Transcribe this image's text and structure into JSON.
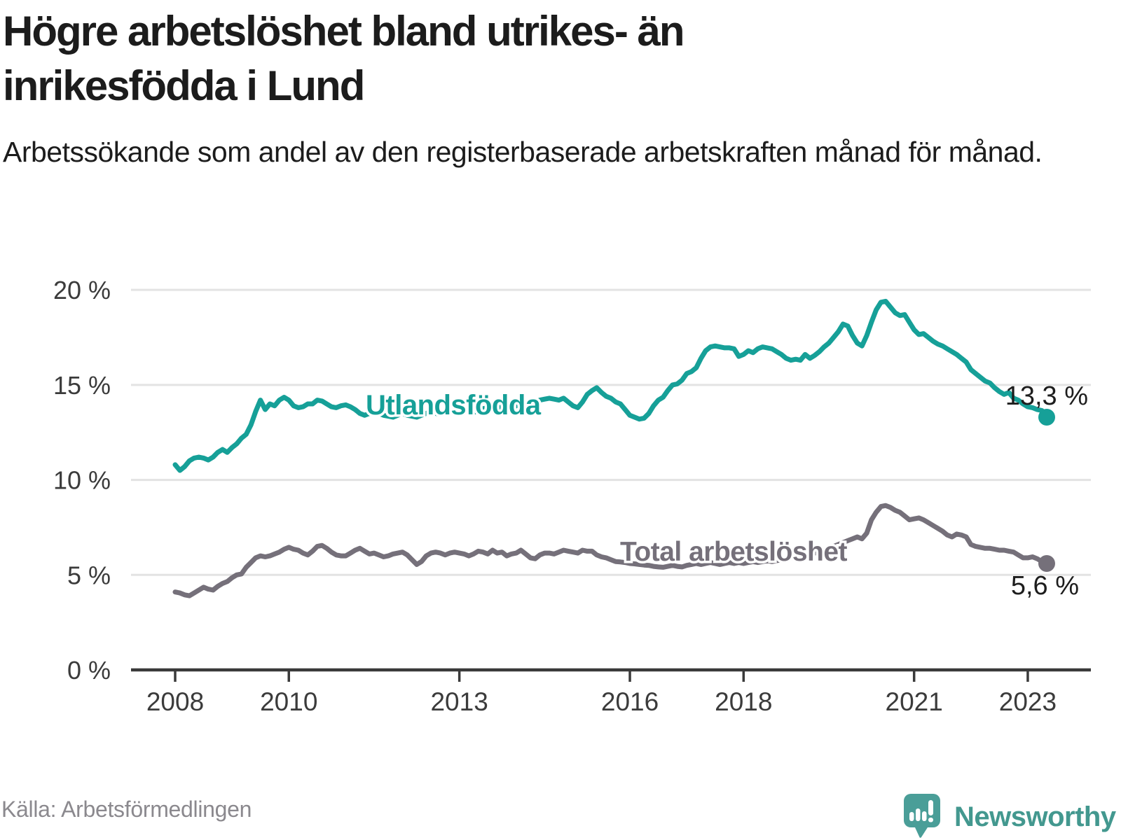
{
  "title": "Högre arbetslöshet bland utrikes- än inrikesfödda i Lund",
  "subtitle": "Arbetssökande som andel av den registerbaserade arbetskraften månad för månad.",
  "source": "Källa: Arbetsförmedlingen",
  "brand": {
    "name": "Newsworthy",
    "text_color": "#43988f",
    "icon_color": "#4a9e98"
  },
  "chart_data": {
    "type": "line",
    "title": "Högre arbetslöshet bland utrikes- än inrikesfödda i Lund",
    "xlabel": "",
    "ylabel": "Arbetssökande som andel av den registerbaserade arbetskraften",
    "x_unit": "month",
    "x_start": "2008-01",
    "x_end": "2023-05",
    "x_tick_years": [
      2008,
      2010,
      2013,
      2016,
      2018,
      2021,
      2023
    ],
    "ylim": [
      0,
      20
    ],
    "y_ticks": [
      0,
      5,
      10,
      15,
      20
    ],
    "y_tick_suffix": " %",
    "grid": true,
    "axis_color": "#3a3a3a",
    "grid_color": "#e3e3e3",
    "label_color": "#3b3b3b",
    "value_label_color": "#1d1d1d",
    "series": [
      {
        "name": "Utlandsfödda",
        "color": "#16a098",
        "end_label": "13,3 %",
        "end_value": 13.3,
        "values": [
          10.8,
          10.5,
          10.7,
          11.0,
          11.15,
          11.2,
          11.15,
          11.05,
          11.2,
          11.45,
          11.6,
          11.45,
          11.7,
          11.9,
          12.2,
          12.4,
          12.9,
          13.6,
          14.2,
          13.7,
          14.0,
          13.9,
          14.2,
          14.35,
          14.2,
          13.9,
          13.8,
          13.85,
          14.0,
          14.0,
          14.2,
          14.15,
          14.0,
          13.85,
          13.8,
          13.9,
          13.95,
          13.85,
          13.7,
          13.5,
          13.4,
          13.5,
          13.45,
          13.5,
          13.4,
          13.35,
          13.3,
          13.4,
          13.5,
          13.4,
          13.35,
          13.3,
          13.4,
          13.5,
          13.6,
          13.5,
          13.45,
          13.55,
          13.6,
          13.5,
          13.6,
          13.7,
          13.6,
          13.55,
          13.65,
          13.75,
          13.8,
          13.7,
          13.75,
          13.85,
          13.9,
          13.8,
          13.9,
          14.0,
          13.95,
          14.05,
          14.1,
          14.2,
          14.25,
          14.3,
          14.25,
          14.2,
          14.3,
          14.1,
          13.9,
          13.8,
          14.1,
          14.5,
          14.7,
          14.85,
          14.6,
          14.4,
          14.3,
          14.1,
          14.0,
          13.7,
          13.4,
          13.3,
          13.2,
          13.25,
          13.5,
          13.9,
          14.2,
          14.35,
          14.7,
          15.0,
          15.05,
          15.25,
          15.6,
          15.7,
          15.9,
          16.4,
          16.8,
          17.0,
          17.05,
          17.0,
          16.95,
          16.95,
          16.9,
          16.5,
          16.6,
          16.8,
          16.7,
          16.9,
          17.0,
          16.95,
          16.9,
          16.75,
          16.6,
          16.4,
          16.3,
          16.35,
          16.3,
          16.6,
          16.4,
          16.55,
          16.75,
          17.0,
          17.2,
          17.5,
          17.8,
          18.2,
          18.1,
          17.6,
          17.2,
          17.05,
          17.6,
          18.3,
          18.95,
          19.35,
          19.4,
          19.1,
          18.8,
          18.65,
          18.7,
          18.3,
          17.9,
          17.65,
          17.7,
          17.5,
          17.3,
          17.15,
          17.05,
          16.9,
          16.75,
          16.6,
          16.4,
          16.2,
          15.8,
          15.6,
          15.4,
          15.2,
          15.1,
          14.85,
          14.65,
          14.5,
          14.6,
          14.3,
          14.2,
          14.0,
          13.85,
          13.8,
          13.7,
          13.65,
          13.3
        ]
      },
      {
        "name": "Total arbetslöshet",
        "color": "#75707a",
        "end_label": "5,6 %",
        "end_value": 5.6,
        "values": [
          4.1,
          4.05,
          3.95,
          3.9,
          4.05,
          4.2,
          4.35,
          4.25,
          4.2,
          4.4,
          4.55,
          4.65,
          4.85,
          5.0,
          5.05,
          5.4,
          5.65,
          5.9,
          6.0,
          5.95,
          6.0,
          6.1,
          6.2,
          6.35,
          6.45,
          6.35,
          6.3,
          6.15,
          6.05,
          6.25,
          6.5,
          6.55,
          6.4,
          6.2,
          6.05,
          6.0,
          6.0,
          6.15,
          6.3,
          6.4,
          6.25,
          6.1,
          6.15,
          6.05,
          5.95,
          6.0,
          6.1,
          6.15,
          6.2,
          6.05,
          5.8,
          5.55,
          5.7,
          6.0,
          6.15,
          6.2,
          6.15,
          6.05,
          6.15,
          6.2,
          6.15,
          6.1,
          6.0,
          6.1,
          6.25,
          6.2,
          6.1,
          6.3,
          6.15,
          6.2,
          6.0,
          6.1,
          6.15,
          6.3,
          6.1,
          5.9,
          5.85,
          6.05,
          6.15,
          6.15,
          6.1,
          6.2,
          6.3,
          6.25,
          6.2,
          6.15,
          6.3,
          6.25,
          6.25,
          6.05,
          5.95,
          5.9,
          5.8,
          5.7,
          5.68,
          5.65,
          5.6,
          5.58,
          5.55,
          5.52,
          5.5,
          5.45,
          5.42,
          5.4,
          5.45,
          5.5,
          5.45,
          5.42,
          5.5,
          5.55,
          5.6,
          5.55,
          5.6,
          5.65,
          5.6,
          5.55,
          5.6,
          5.65,
          5.6,
          5.65,
          5.6,
          5.65,
          5.7,
          5.65,
          5.7,
          5.75,
          5.7,
          5.75,
          5.8,
          5.85,
          5.9,
          5.95,
          6.0,
          6.05,
          6.1,
          6.15,
          6.2,
          6.3,
          6.4,
          6.5,
          6.6,
          6.7,
          6.8,
          6.9,
          7.0,
          6.9,
          7.2,
          7.9,
          8.3,
          8.6,
          8.65,
          8.55,
          8.4,
          8.3,
          8.1,
          7.9,
          7.95,
          8.0,
          7.9,
          7.75,
          7.6,
          7.45,
          7.3,
          7.1,
          7.0,
          7.15,
          7.1,
          7.0,
          6.6,
          6.5,
          6.45,
          6.4,
          6.4,
          6.35,
          6.3,
          6.3,
          6.25,
          6.2,
          6.05,
          5.9,
          5.9,
          5.95,
          5.85,
          5.7,
          5.6
        ]
      }
    ],
    "legend_position": "inline-labels"
  }
}
